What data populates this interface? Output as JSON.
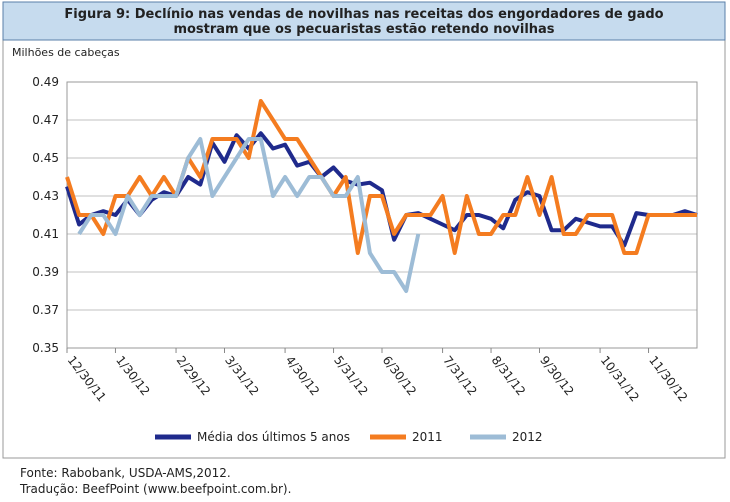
{
  "chart_data": {
    "type": "line",
    "title": "Figura 9: Declínio nas vendas de novilhas nas receitas dos engordadores de gado",
    "subtitle": "mostram que os pecuaristas estão retendo novilhas",
    "y_label": "Milhões de cabeças",
    "categories": [
      "12/30/11",
      null,
      null,
      null,
      "1/30/12",
      null,
      null,
      null,
      null,
      "2/29/12",
      null,
      null,
      null,
      "3/31/12",
      null,
      null,
      null,
      null,
      "4/30/12",
      null,
      null,
      null,
      "5/31/12",
      null,
      null,
      null,
      "6/30/12",
      null,
      null,
      null,
      null,
      "7/31/12",
      null,
      null,
      null,
      "8/31/12",
      null,
      null,
      null,
      "9/30/12",
      null,
      null,
      null,
      null,
      "10/31/12",
      null,
      null,
      null,
      "11/30/12",
      null,
      null,
      null,
      null
    ],
    "series": [
      {
        "name": "Média dos últimos 5 anos",
        "color": "#1f2a8c",
        "values": [
          0.435,
          0.415,
          0.42,
          0.422,
          0.42,
          0.428,
          0.42,
          0.428,
          0.432,
          0.43,
          0.44,
          0.436,
          0.458,
          0.448,
          0.462,
          0.455,
          0.463,
          0.455,
          0.457,
          0.446,
          0.448,
          0.44,
          0.445,
          0.438,
          0.436,
          0.437,
          0.433,
          0.407,
          0.42,
          0.421,
          0.418,
          0.415,
          0.412,
          0.42,
          0.42,
          0.418,
          0.413,
          0.428,
          0.432,
          0.43,
          0.412,
          0.412,
          0.418,
          0.416,
          0.414,
          0.414,
          0.404,
          0.421,
          0.42,
          0.42,
          0.42,
          0.422,
          0.42
        ]
      },
      {
        "name": "2011",
        "color": "#f47c20",
        "values": [
          0.44,
          0.42,
          0.42,
          0.41,
          0.43,
          0.43,
          0.44,
          0.43,
          0.44,
          0.43,
          0.45,
          0.44,
          0.46,
          0.46,
          0.46,
          0.45,
          0.48,
          0.47,
          0.46,
          0.46,
          0.45,
          0.44,
          0.43,
          0.44,
          0.4,
          0.43,
          0.43,
          0.41,
          0.42,
          0.42,
          0.42,
          0.43,
          0.4,
          0.43,
          0.41,
          0.41,
          0.42,
          0.42,
          0.44,
          0.42,
          0.44,
          0.41,
          0.41,
          0.42,
          0.42,
          0.42,
          0.4,
          0.4,
          0.42,
          0.42,
          0.42,
          0.42,
          0.42
        ]
      },
      {
        "name": "2012",
        "color": "#9dbcd6",
        "values": [
          null,
          0.41,
          0.42,
          0.42,
          0.41,
          0.43,
          0.42,
          0.43,
          0.43,
          0.43,
          0.45,
          0.46,
          0.43,
          0.44,
          0.45,
          0.46,
          0.46,
          0.43,
          0.44,
          0.43,
          0.44,
          0.44,
          0.43,
          0.43,
          0.44,
          0.4,
          0.39,
          0.39,
          0.38,
          0.41,
          null,
          null,
          null,
          null,
          null,
          null,
          null,
          null,
          null,
          null,
          null,
          null,
          null,
          null,
          null,
          null,
          null,
          null,
          null,
          null,
          null,
          null,
          null
        ]
      }
    ],
    "ylim": [
      0.35,
      0.49
    ],
    "yticks": [
      0.35,
      0.37,
      0.39,
      0.41,
      0.43,
      0.45,
      0.47,
      0.49
    ],
    "grid": true
  },
  "footer": {
    "source": "Fonte: Rabobank, USDA-AMS,2012.",
    "translation": "Tradução: BeefPoint (www.beefpoint.com.br)."
  }
}
